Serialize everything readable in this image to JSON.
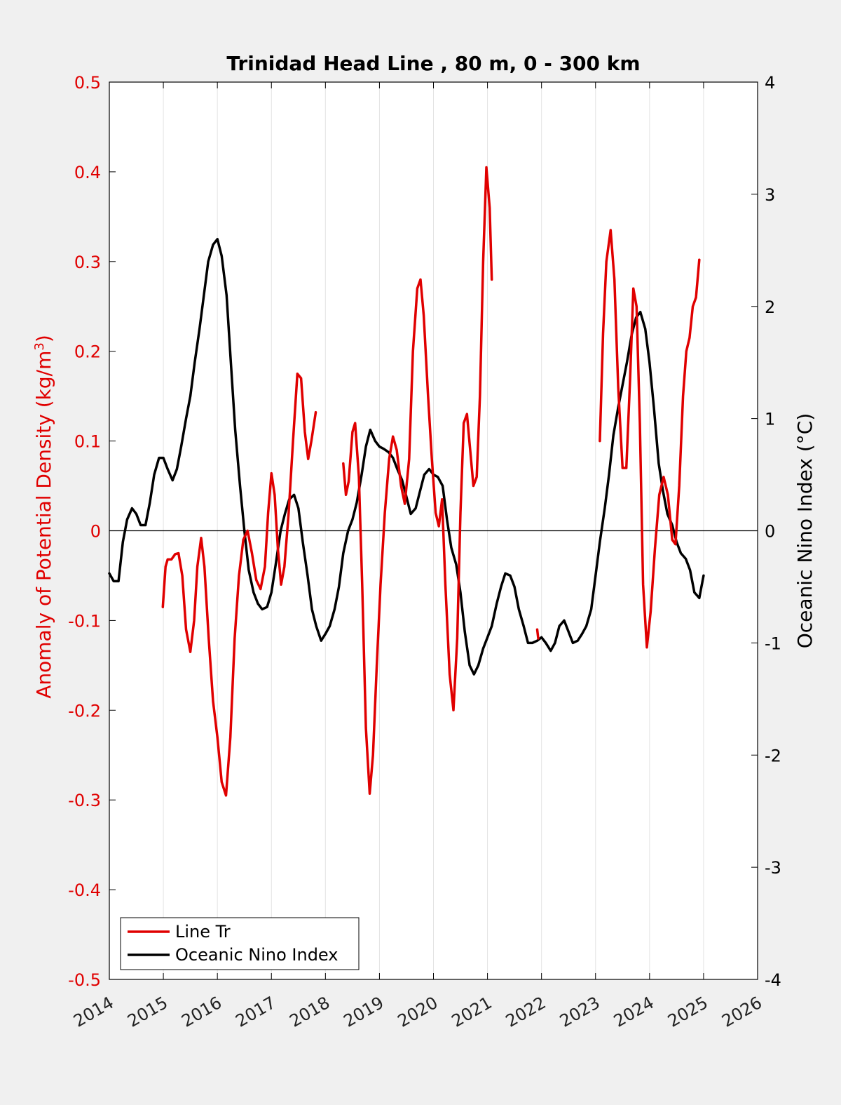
{
  "chart_data": {
    "type": "line",
    "title": "Trinidad Head Line , 80 m, 0 - 300 km",
    "ylabel_left": "Anomaly of Potential Density (kg/m",
    "ylabel_left_sup": "3",
    "ylabel_left_close": ")",
    "ylabel_right": "Oceanic Nino Index (°C)",
    "xlim": [
      2014,
      2026
    ],
    "ylim_left": [
      -0.5,
      0.5
    ],
    "ylim_right": [
      -4,
      4
    ],
    "xticks": [
      "2014",
      "2015",
      "2016",
      "2017",
      "2018",
      "2019",
      "2020",
      "2021",
      "2022",
      "2023",
      "2024",
      "2025",
      "2026"
    ],
    "yticks_left": [
      "-0.5",
      "-0.4",
      "-0.3",
      "-0.2",
      "-0.1",
      "0",
      "0.1",
      "0.2",
      "0.3",
      "0.4",
      "0.5"
    ],
    "yticks_right": [
      "-4",
      "-3",
      "-2",
      "-1",
      "0",
      "1",
      "2",
      "3",
      "4"
    ],
    "grid": "vertical",
    "legend_position": "bottom-left",
    "series": [
      {
        "name": "Line Tr",
        "axis": "left",
        "color": "#e00000",
        "segments": [
          [
            [
              2014.99,
              -0.085
            ],
            [
              2015.04,
              -0.04
            ],
            [
              2015.08,
              -0.032
            ],
            [
              2015.15,
              -0.032
            ],
            [
              2015.22,
              -0.026
            ],
            [
              2015.28,
              -0.025
            ],
            [
              2015.35,
              -0.05
            ],
            [
              2015.42,
              -0.11
            ],
            [
              2015.5,
              -0.135
            ],
            [
              2015.57,
              -0.1
            ],
            [
              2015.63,
              -0.04
            ],
            [
              2015.7,
              -0.008
            ],
            [
              2015.76,
              -0.04
            ],
            [
              2015.84,
              -0.12
            ],
            [
              2015.92,
              -0.19
            ],
            [
              2016.0,
              -0.23
            ],
            [
              2016.08,
              -0.28
            ],
            [
              2016.16,
              -0.295
            ],
            [
              2016.24,
              -0.23
            ],
            [
              2016.32,
              -0.12
            ],
            [
              2016.4,
              -0.05
            ],
            [
              2016.48,
              -0.01
            ],
            [
              2016.56,
              0
            ],
            [
              2016.64,
              -0.025
            ],
            [
              2016.72,
              -0.055
            ],
            [
              2016.8,
              -0.065
            ],
            [
              2016.88,
              -0.04
            ],
            [
              2016.94,
              0.02
            ],
            [
              2017.0,
              0.064
            ],
            [
              2017.06,
              0.04
            ],
            [
              2017.12,
              -0.02
            ],
            [
              2017.18,
              -0.06
            ],
            [
              2017.24,
              -0.04
            ],
            [
              2017.32,
              0.02
            ],
            [
              2017.4,
              0.1
            ],
            [
              2017.48,
              0.175
            ],
            [
              2017.55,
              0.17
            ],
            [
              2017.62,
              0.11
            ],
            [
              2017.68,
              0.08
            ],
            [
              2017.74,
              0.1
            ],
            [
              2017.82,
              0.132
            ]
          ],
          [
            [
              2018.33,
              0.075
            ],
            [
              2018.38,
              0.04
            ],
            [
              2018.43,
              0.055
            ],
            [
              2018.5,
              0.11
            ],
            [
              2018.55,
              0.12
            ],
            [
              2018.62,
              0.06
            ],
            [
              2018.68,
              -0.06
            ],
            [
              2018.75,
              -0.22
            ],
            [
              2018.82,
              -0.293
            ],
            [
              2018.88,
              -0.25
            ],
            [
              2018.95,
              -0.15
            ],
            [
              2019.02,
              -0.06
            ],
            [
              2019.1,
              0.02
            ],
            [
              2019.18,
              0.08
            ],
            [
              2019.25,
              0.105
            ],
            [
              2019.32,
              0.09
            ],
            [
              2019.4,
              0.05
            ],
            [
              2019.47,
              0.03
            ],
            [
              2019.55,
              0.08
            ],
            [
              2019.62,
              0.2
            ],
            [
              2019.7,
              0.27
            ],
            [
              2019.76,
              0.28
            ],
            [
              2019.82,
              0.24
            ],
            [
              2019.9,
              0.15
            ],
            [
              2019.97,
              0.08
            ],
            [
              2020.04,
              0.02
            ],
            [
              2020.1,
              0.005
            ],
            [
              2020.16,
              0.035
            ],
            [
              2020.22,
              -0.06
            ],
            [
              2020.3,
              -0.16
            ],
            [
              2020.37,
              -0.2
            ],
            [
              2020.44,
              -0.12
            ],
            [
              2020.5,
              0.02
            ],
            [
              2020.56,
              0.12
            ],
            [
              2020.62,
              0.13
            ],
            [
              2020.68,
              0.09
            ],
            [
              2020.74,
              0.05
            ],
            [
              2020.8,
              0.06
            ],
            [
              2020.86,
              0.15
            ],
            [
              2020.92,
              0.3
            ],
            [
              2020.98,
              0.405
            ],
            [
              2021.04,
              0.36
            ],
            [
              2021.08,
              0.28
            ]
          ],
          [
            [
              2021.92,
              -0.11
            ],
            [
              2021.94,
              -0.12
            ]
          ],
          [
            [
              2023.08,
              0.1
            ],
            [
              2023.14,
              0.22
            ],
            [
              2023.2,
              0.3
            ],
            [
              2023.28,
              0.335
            ],
            [
              2023.35,
              0.28
            ],
            [
              2023.42,
              0.16
            ],
            [
              2023.5,
              0.07
            ],
            [
              2023.57,
              0.07
            ],
            [
              2023.64,
              0.17
            ],
            [
              2023.7,
              0.27
            ],
            [
              2023.76,
              0.25
            ],
            [
              2023.82,
              0.12
            ],
            [
              2023.88,
              -0.06
            ],
            [
              2023.95,
              -0.13
            ],
            [
              2024.02,
              -0.09
            ],
            [
              2024.1,
              -0.02
            ],
            [
              2024.18,
              0.04
            ],
            [
              2024.26,
              0.06
            ],
            [
              2024.34,
              0.04
            ],
            [
              2024.42,
              -0.01
            ],
            [
              2024.48,
              -0.015
            ],
            [
              2024.55,
              0.05
            ],
            [
              2024.62,
              0.15
            ],
            [
              2024.68,
              0.2
            ],
            [
              2024.74,
              0.215
            ],
            [
              2024.8,
              0.25
            ],
            [
              2024.86,
              0.26
            ],
            [
              2024.92,
              0.302
            ]
          ]
        ]
      },
      {
        "name": "Oceanic Nino Index",
        "axis": "right",
        "color": "#000000",
        "segments": [
          [
            [
              2014.0,
              -0.38
            ],
            [
              2014.08,
              -0.45
            ],
            [
              2014.17,
              -0.45
            ],
            [
              2014.25,
              -0.1
            ],
            [
              2014.33,
              0.1
            ],
            [
              2014.42,
              0.2
            ],
            [
              2014.5,
              0.15
            ],
            [
              2014.58,
              0.05
            ],
            [
              2014.67,
              0.05
            ],
            [
              2014.75,
              0.25
            ],
            [
              2014.83,
              0.5
            ],
            [
              2014.92,
              0.65
            ],
            [
              2015.0,
              0.65
            ],
            [
              2015.08,
              0.55
            ],
            [
              2015.17,
              0.45
            ],
            [
              2015.25,
              0.55
            ],
            [
              2015.33,
              0.75
            ],
            [
              2015.42,
              1.0
            ],
            [
              2015.5,
              1.2
            ],
            [
              2015.58,
              1.5
            ],
            [
              2015.67,
              1.8
            ],
            [
              2015.75,
              2.1
            ],
            [
              2015.83,
              2.4
            ],
            [
              2015.92,
              2.55
            ],
            [
              2016.0,
              2.6
            ],
            [
              2016.08,
              2.45
            ],
            [
              2016.17,
              2.1
            ],
            [
              2016.25,
              1.5
            ],
            [
              2016.33,
              0.9
            ],
            [
              2016.42,
              0.4
            ],
            [
              2016.5,
              0
            ],
            [
              2016.58,
              -0.35
            ],
            [
              2016.67,
              -0.55
            ],
            [
              2016.75,
              -0.65
            ],
            [
              2016.83,
              -0.7
            ],
            [
              2016.92,
              -0.68
            ],
            [
              2017.0,
              -0.55
            ],
            [
              2017.08,
              -0.3
            ],
            [
              2017.17,
              0
            ],
            [
              2017.25,
              0.15
            ],
            [
              2017.33,
              0.28
            ],
            [
              2017.42,
              0.32
            ],
            [
              2017.5,
              0.2
            ],
            [
              2017.58,
              -0.1
            ],
            [
              2017.67,
              -0.4
            ],
            [
              2017.75,
              -0.7
            ],
            [
              2017.83,
              -0.85
            ],
            [
              2017.92,
              -0.98
            ],
            [
              2018.0,
              -0.92
            ],
            [
              2018.08,
              -0.85
            ],
            [
              2018.17,
              -0.7
            ],
            [
              2018.25,
              -0.5
            ],
            [
              2018.33,
              -0.2
            ],
            [
              2018.42,
              0
            ],
            [
              2018.5,
              0.1
            ],
            [
              2018.58,
              0.25
            ],
            [
              2018.67,
              0.5
            ],
            [
              2018.75,
              0.75
            ],
            [
              2018.83,
              0.9
            ],
            [
              2018.92,
              0.8
            ],
            [
              2019.0,
              0.75
            ],
            [
              2019.08,
              0.73
            ],
            [
              2019.17,
              0.7
            ],
            [
              2019.25,
              0.65
            ],
            [
              2019.33,
              0.55
            ],
            [
              2019.42,
              0.45
            ],
            [
              2019.5,
              0.3
            ],
            [
              2019.58,
              0.15
            ],
            [
              2019.67,
              0.2
            ],
            [
              2019.75,
              0.35
            ],
            [
              2019.83,
              0.5
            ],
            [
              2019.92,
              0.55
            ],
            [
              2020.0,
              0.5
            ],
            [
              2020.08,
              0.48
            ],
            [
              2020.17,
              0.4
            ],
            [
              2020.25,
              0.1
            ],
            [
              2020.33,
              -0.15
            ],
            [
              2020.42,
              -0.3
            ],
            [
              2020.5,
              -0.55
            ],
            [
              2020.58,
              -0.9
            ],
            [
              2020.67,
              -1.2
            ],
            [
              2020.75,
              -1.28
            ],
            [
              2020.83,
              -1.2
            ],
            [
              2020.92,
              -1.05
            ],
            [
              2021.0,
              -0.95
            ],
            [
              2021.08,
              -0.85
            ],
            [
              2021.17,
              -0.65
            ],
            [
              2021.25,
              -0.5
            ],
            [
              2021.33,
              -0.38
            ],
            [
              2021.42,
              -0.4
            ],
            [
              2021.5,
              -0.5
            ],
            [
              2021.58,
              -0.7
            ],
            [
              2021.67,
              -0.85
            ],
            [
              2021.75,
              -1.0
            ],
            [
              2021.83,
              -1.0
            ],
            [
              2021.92,
              -0.98
            ],
            [
              2022.0,
              -0.95
            ],
            [
              2022.08,
              -1.0
            ],
            [
              2022.17,
              -1.07
            ],
            [
              2022.25,
              -1.0
            ],
            [
              2022.33,
              -0.85
            ],
            [
              2022.42,
              -0.8
            ],
            [
              2022.5,
              -0.9
            ],
            [
              2022.58,
              -1.0
            ],
            [
              2022.67,
              -0.98
            ],
            [
              2022.75,
              -0.92
            ],
            [
              2022.83,
              -0.85
            ],
            [
              2022.92,
              -0.7
            ],
            [
              2023.0,
              -0.4
            ],
            [
              2023.08,
              -0.1
            ],
            [
              2023.17,
              0.2
            ],
            [
              2023.25,
              0.5
            ],
            [
              2023.33,
              0.85
            ],
            [
              2023.42,
              1.1
            ],
            [
              2023.5,
              1.3
            ],
            [
              2023.58,
              1.5
            ],
            [
              2023.67,
              1.75
            ],
            [
              2023.75,
              1.9
            ],
            [
              2023.83,
              1.95
            ],
            [
              2023.92,
              1.8
            ],
            [
              2024.0,
              1.5
            ],
            [
              2024.08,
              1.1
            ],
            [
              2024.17,
              0.6
            ],
            [
              2024.25,
              0.35
            ],
            [
              2024.33,
              0.15
            ],
            [
              2024.42,
              0.05
            ],
            [
              2024.5,
              -0.1
            ],
            [
              2024.58,
              -0.2
            ],
            [
              2024.67,
              -0.25
            ],
            [
              2024.75,
              -0.35
            ],
            [
              2024.83,
              -0.55
            ],
            [
              2024.92,
              -0.6
            ],
            [
              2025.0,
              -0.4
            ]
          ]
        ]
      }
    ]
  }
}
